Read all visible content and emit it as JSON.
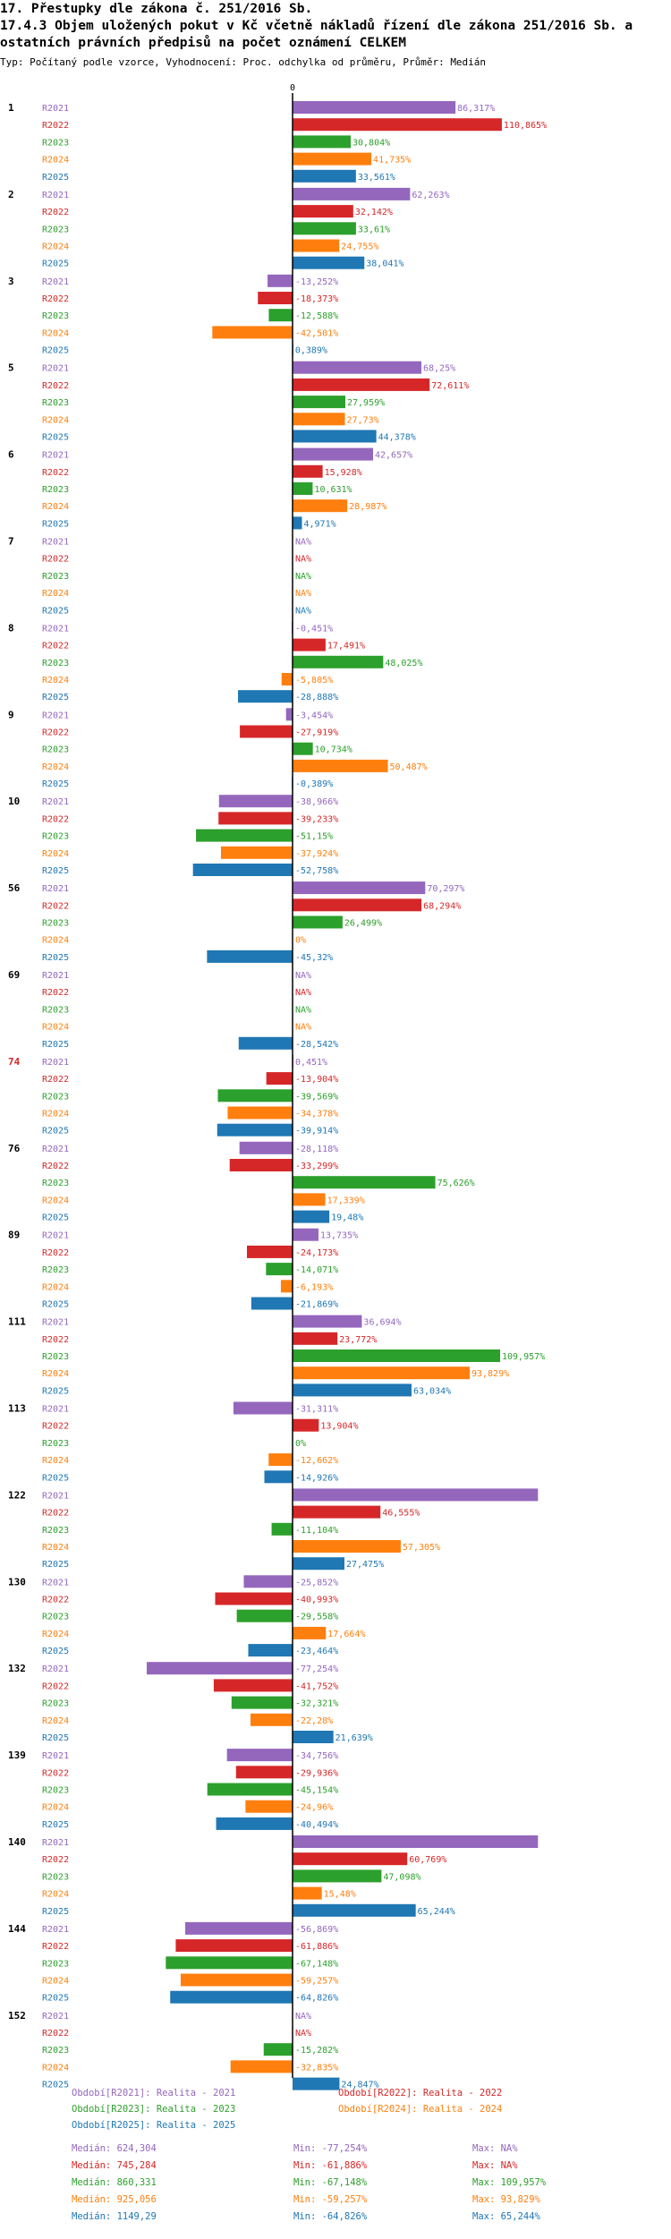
{
  "chart_data": {
    "type": "bar",
    "orientation": "horizontal",
    "title_line1": "17. Přestupky dle zákona č. 251/2016 Sb.",
    "title_line2": "17.4.3 Objem uložených pokut v Kč včetně nákladů řízení dle zákona 251/2016 Sb. a",
    "title_line3": " ostatních právních předpisů na počet oznámení CELKEM",
    "subtitle": "Typ: Počítaný podle vzorce, Vyhodnocení: Proc. odchylka od průměru, Průměr: Medián",
    "zero_label": "0",
    "series_names": [
      "R2021",
      "R2022",
      "R2023",
      "R2024",
      "R2025"
    ],
    "series_colors": [
      "#9467bd",
      "#d62728",
      "#2ca02c",
      "#ff7f0e",
      "#1f77b4"
    ],
    "groups": [
      {
        "label": "1",
        "highlight": false,
        "values": [
          86.317,
          110.865,
          30.804,
          41.735,
          33.561
        ],
        "labels": [
          "86,317%",
          "110,865%",
          "30,804%",
          "41,735%",
          "33,561%"
        ]
      },
      {
        "label": "2",
        "highlight": false,
        "values": [
          62.263,
          32.142,
          33.61,
          24.755,
          38.041
        ],
        "labels": [
          "62,263%",
          "32,142%",
          "33,61%",
          "24,755%",
          "38,041%"
        ]
      },
      {
        "label": "3",
        "highlight": false,
        "values": [
          -13.252,
          -18.373,
          -12.588,
          -42.501,
          0.389
        ],
        "labels": [
          "-13,252%",
          "-18,373%",
          "-12,588%",
          "-42,501%",
          "0,389%"
        ]
      },
      {
        "label": "5",
        "highlight": false,
        "values": [
          68.25,
          72.611,
          27.959,
          27.73,
          44.378
        ],
        "labels": [
          "68,25%",
          "72,611%",
          "27,959%",
          "27,73%",
          "44,378%"
        ]
      },
      {
        "label": "6",
        "highlight": false,
        "values": [
          42.657,
          15.928,
          10.631,
          28.987,
          4.971
        ],
        "labels": [
          "42,657%",
          "15,928%",
          "10,631%",
          "28,987%",
          "4,971%"
        ]
      },
      {
        "label": "7",
        "highlight": false,
        "values": [
          null,
          null,
          null,
          null,
          null
        ],
        "labels": [
          "NA%",
          "NA%",
          "NA%",
          "NA%",
          "NA%"
        ]
      },
      {
        "label": "8",
        "highlight": false,
        "values": [
          -0.451,
          17.491,
          48.025,
          -5.805,
          -28.888
        ],
        "labels": [
          "-0,451%",
          "17,491%",
          "48,025%",
          "-5,805%",
          "-28,888%"
        ]
      },
      {
        "label": "9",
        "highlight": false,
        "values": [
          -3.454,
          -27.919,
          10.734,
          50.487,
          -0.389
        ],
        "labels": [
          "-3,454%",
          "-27,919%",
          "10,734%",
          "50,487%",
          "-0,389%"
        ]
      },
      {
        "label": "10",
        "highlight": false,
        "values": [
          -38.966,
          -39.233,
          -51.15,
          -37.924,
          -52.758
        ],
        "labels": [
          "-38,966%",
          "-39,233%",
          "-51,15%",
          "-37,924%",
          "-52,758%"
        ]
      },
      {
        "label": "56",
        "highlight": false,
        "values": [
          70.297,
          68.294,
          26.499,
          0,
          -45.32
        ],
        "labels": [
          "70,297%",
          "68,294%",
          "26,499%",
          "0%",
          "-45,32%"
        ]
      },
      {
        "label": "69",
        "highlight": false,
        "values": [
          null,
          null,
          null,
          null,
          -28.542
        ],
        "labels": [
          "NA%",
          "NA%",
          "NA%",
          "NA%",
          "-28,542%"
        ]
      },
      {
        "label": "74",
        "highlight": true,
        "values": [
          0.451,
          -13.904,
          -39.569,
          -34.378,
          -39.914
        ],
        "labels": [
          "0,451%",
          "-13,904%",
          "-39,569%",
          "-34,378%",
          "-39,914%"
        ]
      },
      {
        "label": "76",
        "highlight": false,
        "values": [
          -28.118,
          -33.299,
          75.626,
          17.339,
          19.48
        ],
        "labels": [
          "-28,118%",
          "-33,299%",
          "75,626%",
          "17,339%",
          "19,48%"
        ]
      },
      {
        "label": "89",
        "highlight": false,
        "values": [
          13.735,
          -24.173,
          -14.071,
          -6.193,
          -21.869
        ],
        "labels": [
          "13,735%",
          "-24,173%",
          "-14,071%",
          "-6,193%",
          "-21,869%"
        ]
      },
      {
        "label": "111",
        "highlight": false,
        "values": [
          36.694,
          23.772,
          109.957,
          93.829,
          63.034
        ],
        "labels": [
          "36,694%",
          "23,772%",
          "109,957%",
          "93,829%",
          "63,034%"
        ]
      },
      {
        "label": "113",
        "highlight": false,
        "values": [
          -31.311,
          13.904,
          0,
          -12.662,
          -14.926
        ],
        "labels": [
          "-31,311%",
          "13,904%",
          "0%",
          "-12,662%",
          "-14,926%"
        ]
      },
      {
        "label": "122",
        "highlight": false,
        "values": [
          130,
          46.555,
          -11.104,
          57.305,
          27.475
        ],
        "labels": [
          "",
          "46,555%",
          "-11,104%",
          "57,305%",
          "27,475%"
        ]
      },
      {
        "label": "130",
        "highlight": false,
        "values": [
          -25.852,
          -40.993,
          -29.558,
          17.664,
          -23.464
        ],
        "labels": [
          "-25,852%",
          "-40,993%",
          "-29,558%",
          "17,664%",
          "-23,464%"
        ]
      },
      {
        "label": "132",
        "highlight": false,
        "values": [
          -77.254,
          -41.752,
          -32.321,
          -22.28,
          21.639
        ],
        "labels": [
          "-77,254%",
          "-41,752%",
          "-32,321%",
          "-22,28%",
          "21,639%"
        ]
      },
      {
        "label": "139",
        "highlight": false,
        "values": [
          -34.756,
          -29.936,
          -45.154,
          -24.96,
          -40.494
        ],
        "labels": [
          "-34,756%",
          "-29,936%",
          "-45,154%",
          "-24,96%",
          "-40,494%"
        ]
      },
      {
        "label": "140",
        "highlight": false,
        "values": [
          130,
          60.769,
          47.098,
          15.48,
          65.244
        ],
        "labels": [
          "",
          "60,769%",
          "47,098%",
          "15,48%",
          "65,244%"
        ]
      },
      {
        "label": "144",
        "highlight": false,
        "values": [
          -56.869,
          -61.886,
          -67.148,
          -59.257,
          -64.826
        ],
        "labels": [
          "-56,869%",
          "-61,886%",
          "-67,148%",
          "-59,257%",
          "-64,826%"
        ]
      },
      {
        "label": "152",
        "highlight": false,
        "values": [
          null,
          null,
          -15.282,
          -32.835,
          24.847
        ],
        "labels": [
          "NA%",
          "NA%",
          "-15,282%",
          "-32,835%",
          "24,847%"
        ]
      }
    ],
    "axis_range": [
      -78,
      130
    ],
    "legend": [
      "Období[R2021]: Realita - 2021",
      "Období[R2022]: Realita - 2022",
      "Období[R2023]: Realita - 2023",
      "Období[R2024]: Realita - 2024",
      "Období[R2025]: Realita - 2025"
    ],
    "stats": [
      {
        "median": "Medián: 624,304",
        "min": "Min: -77,254%",
        "max": "Max: NA%"
      },
      {
        "median": "Medián: 745,284",
        "min": "Min: -61,886%",
        "max": "Max: NA%"
      },
      {
        "median": "Medián: 860,331",
        "min": "Min: -67,148%",
        "max": "Max: 109,957%"
      },
      {
        "median": "Medián: 925,056",
        "min": "Min: -59,257%",
        "max": "Max: 93,829%"
      },
      {
        "median": "Medián: 1149,29",
        "min": "Min: -64,826%",
        "max": "Max: 65,244%"
      }
    ]
  }
}
